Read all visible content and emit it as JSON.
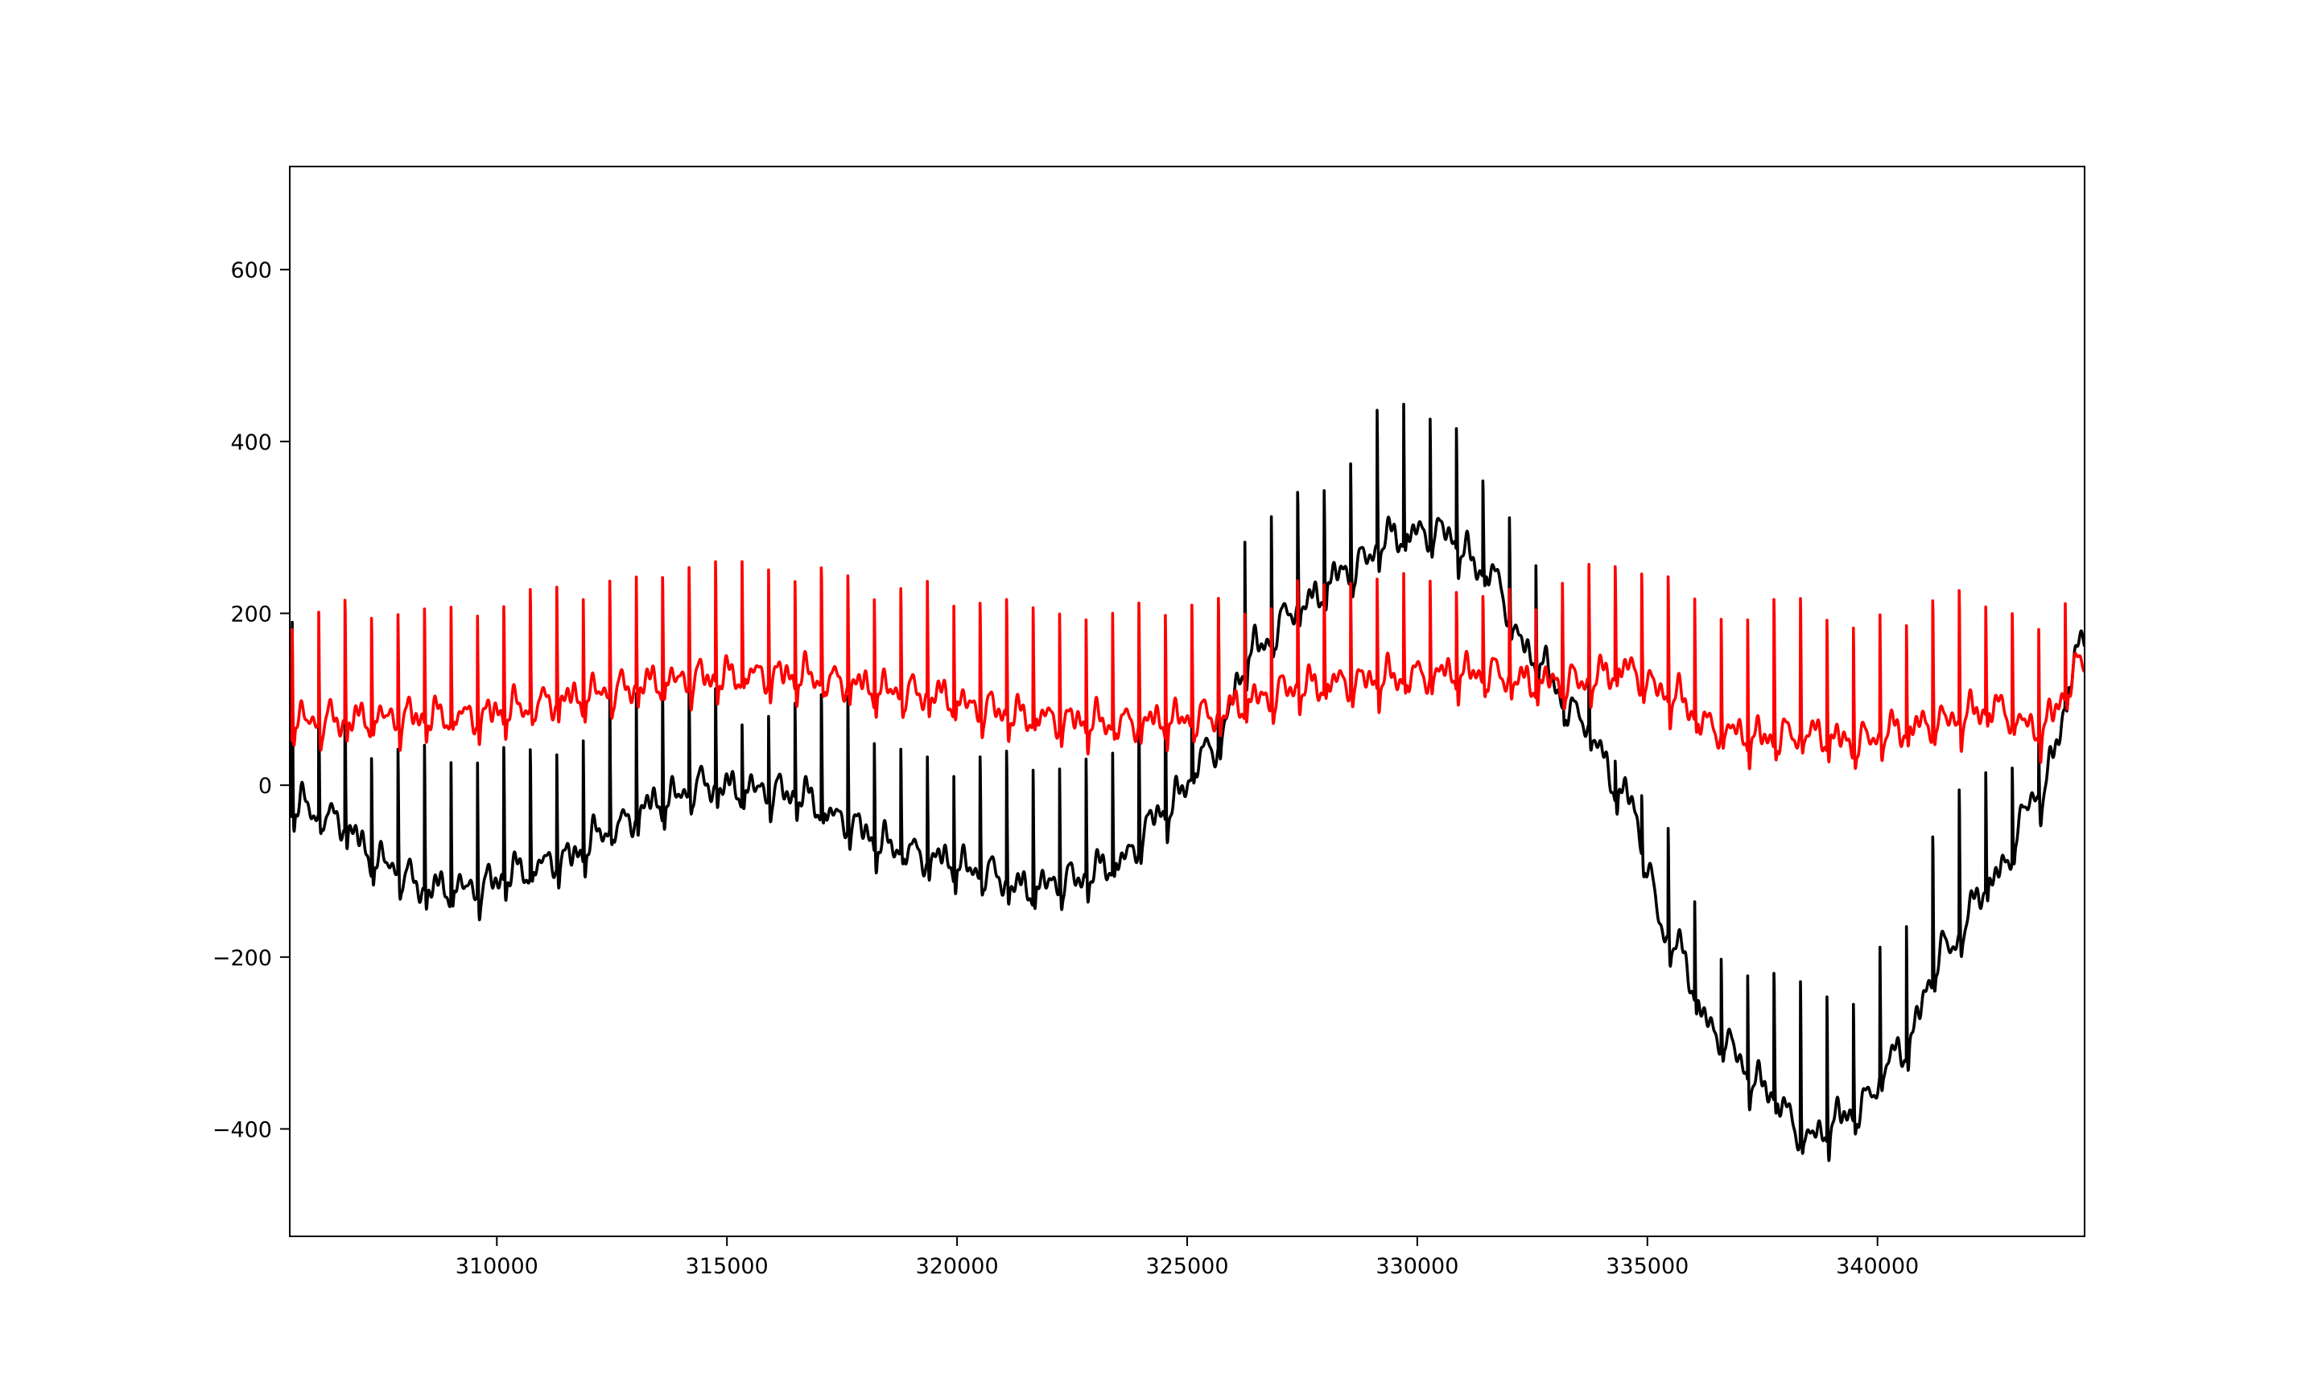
{
  "chart_data": {
    "type": "line",
    "title": "",
    "xlabel": "",
    "ylabel": "",
    "xlim": [
      305500,
      344500
    ],
    "ylim": [
      -525,
      720
    ],
    "grid": false,
    "x_ticks": [
      {
        "value": 310000,
        "label": "310000"
      },
      {
        "value": 315000,
        "label": "315000"
      },
      {
        "value": 320000,
        "label": "320000"
      },
      {
        "value": 325000,
        "label": "325000"
      },
      {
        "value": 330000,
        "label": "330000"
      },
      {
        "value": 335000,
        "label": "335000"
      },
      {
        "value": 340000,
        "label": "340000"
      }
    ],
    "y_ticks": [
      {
        "value": 600,
        "label": "600"
      },
      {
        "value": 400,
        "label": "400"
      },
      {
        "value": 200,
        "label": "200"
      },
      {
        "value": 0,
        "label": "0"
      },
      {
        "value": -200,
        "label": "−200"
      },
      {
        "value": -400,
        "label": "−400"
      }
    ],
    "series": [
      {
        "color": "#000000",
        "beat_start": 305550,
        "beat_interval": 575,
        "baseline": [
          [
            305500,
            -30
          ],
          [
            306500,
            -50
          ],
          [
            307500,
            -100
          ],
          [
            308500,
            -130
          ],
          [
            309500,
            -130
          ],
          [
            310500,
            -110
          ],
          [
            311500,
            -95
          ],
          [
            312500,
            -60
          ],
          [
            313500,
            -30
          ],
          [
            314500,
            -10
          ],
          [
            315500,
            -15
          ],
          [
            316500,
            -20
          ],
          [
            317500,
            -50
          ],
          [
            318500,
            -80
          ],
          [
            319500,
            -95
          ],
          [
            320500,
            -110
          ],
          [
            321500,
            -130
          ],
          [
            322500,
            -120
          ],
          [
            323500,
            -100
          ],
          [
            324500,
            -40
          ],
          [
            325500,
            30
          ],
          [
            326500,
            150
          ],
          [
            327500,
            200
          ],
          [
            328500,
            240
          ],
          [
            329500,
            280
          ],
          [
            330500,
            285
          ],
          [
            331500,
            240
          ],
          [
            332500,
            140
          ],
          [
            333500,
            70
          ],
          [
            334500,
            -20
          ],
          [
            335500,
            -190
          ],
          [
            336500,
            -300
          ],
          [
            337500,
            -360
          ],
          [
            338500,
            -420
          ],
          [
            339500,
            -390
          ],
          [
            340500,
            -320
          ],
          [
            341500,
            -200
          ],
          [
            342500,
            -120
          ],
          [
            343500,
            -20
          ],
          [
            344500,
            155
          ]
        ],
        "peaks": [
          [
            305500,
            210
          ],
          [
            306500,
            110
          ],
          [
            307500,
            35
          ],
          [
            308500,
            45
          ],
          [
            309500,
            40
          ],
          [
            310500,
            40
          ],
          [
            311500,
            40
          ],
          [
            312500,
            110
          ],
          [
            313500,
            120
          ],
          [
            314500,
            110
          ],
          [
            315500,
            80
          ],
          [
            316500,
            100
          ],
          [
            317500,
            110
          ],
          [
            318500,
            40
          ],
          [
            319500,
            35
          ],
          [
            320500,
            30
          ],
          [
            321500,
            30
          ],
          [
            322500,
            25
          ],
          [
            323500,
            50
          ],
          [
            324500,
            150
          ],
          [
            325500,
            205
          ],
          [
            326500,
            320
          ],
          [
            327500,
            330
          ],
          [
            328500,
            380
          ],
          [
            329500,
            455
          ],
          [
            330500,
            440
          ],
          [
            331500,
            350
          ],
          [
            332500,
            270
          ],
          [
            333500,
            180
          ],
          [
            334500,
            20
          ],
          [
            335500,
            -60
          ],
          [
            336500,
            -190
          ],
          [
            337500,
            -220
          ],
          [
            338500,
            -230
          ],
          [
            339500,
            -250
          ],
          [
            340500,
            -150
          ],
          [
            341500,
            -25
          ],
          [
            342500,
            20
          ],
          [
            343500,
            50
          ],
          [
            344500,
            170
          ]
        ]
      },
      {
        "color": "#ff0000",
        "beat_start": 305550,
        "beat_interval": 575,
        "baseline": [
          [
            305500,
            65
          ],
          [
            306500,
            65
          ],
          [
            307500,
            68
          ],
          [
            308500,
            70
          ],
          [
            309500,
            70
          ],
          [
            310500,
            80
          ],
          [
            311500,
            90
          ],
          [
            312500,
            100
          ],
          [
            313500,
            110
          ],
          [
            314500,
            115
          ],
          [
            315500,
            118
          ],
          [
            316500,
            118
          ],
          [
            317500,
            110
          ],
          [
            318500,
            100
          ],
          [
            319500,
            95
          ],
          [
            320500,
            80
          ],
          [
            321500,
            70
          ],
          [
            322500,
            65
          ],
          [
            323500,
            62
          ],
          [
            324500,
            65
          ],
          [
            325500,
            70
          ],
          [
            326500,
            90
          ],
          [
            327500,
            105
          ],
          [
            328500,
            110
          ],
          [
            329500,
            115
          ],
          [
            330500,
            120
          ],
          [
            331500,
            120
          ],
          [
            332500,
            110
          ],
          [
            333500,
            110
          ],
          [
            334500,
            125
          ],
          [
            335500,
            95
          ],
          [
            336500,
            55
          ],
          [
            337500,
            45
          ],
          [
            338500,
            50
          ],
          [
            339500,
            40
          ],
          [
            340500,
            55
          ],
          [
            341500,
            65
          ],
          [
            342500,
            80
          ],
          [
            343500,
            55
          ],
          [
            344500,
            130
          ]
        ],
        "peaks": [
          [
            305500,
            200
          ],
          [
            306500,
            210
          ],
          [
            307500,
            200
          ],
          [
            308500,
            208
          ],
          [
            309500,
            210
          ],
          [
            310500,
            218
          ],
          [
            311500,
            230
          ],
          [
            312500,
            240
          ],
          [
            313500,
            250
          ],
          [
            314500,
            258
          ],
          [
            315500,
            262
          ],
          [
            316500,
            255
          ],
          [
            317500,
            240
          ],
          [
            318500,
            228
          ],
          [
            319500,
            235
          ],
          [
            320500,
            215
          ],
          [
            321500,
            208
          ],
          [
            322500,
            205
          ],
          [
            323500,
            205
          ],
          [
            324500,
            210
          ],
          [
            325500,
            210
          ],
          [
            326500,
            215
          ],
          [
            327500,
            230
          ],
          [
            328500,
            240
          ],
          [
            329500,
            250
          ],
          [
            330500,
            240
          ],
          [
            331500,
            220
          ],
          [
            332500,
            215
          ],
          [
            333500,
            260
          ],
          [
            334500,
            255
          ],
          [
            335500,
            245
          ],
          [
            336500,
            195
          ],
          [
            337500,
            220
          ],
          [
            338500,
            205
          ],
          [
            339500,
            195
          ],
          [
            340500,
            195
          ],
          [
            341500,
            230
          ],
          [
            342500,
            205
          ],
          [
            343500,
            195
          ],
          [
            344500,
            240
          ]
        ]
      }
    ]
  }
}
